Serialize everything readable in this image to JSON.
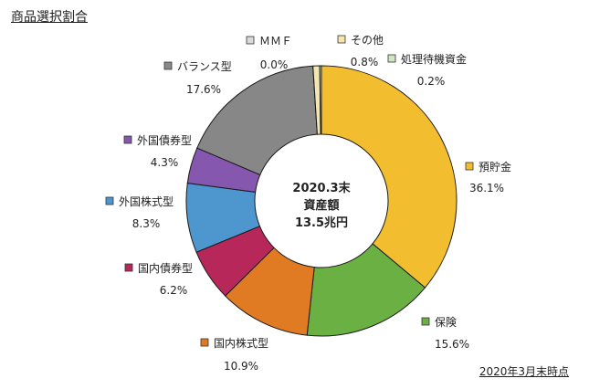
{
  "header": {
    "title": "商品選択割合"
  },
  "footnote": "2020年3月末時点",
  "chart_data": {
    "type": "pie",
    "title": "",
    "center_label": [
      "2020.3末",
      "資産額",
      "13.5兆円"
    ],
    "start": "12 o'clock",
    "direction": "clockwise",
    "legend": "labels beside slices",
    "slices": [
      {
        "name": "預貯金",
        "value": 36.1,
        "label": "36.1%",
        "color": "#F2BD2E"
      },
      {
        "name": "保険",
        "value": 15.6,
        "label": "15.6%",
        "color": "#6BB043"
      },
      {
        "name": "国内株式型",
        "value": 10.9,
        "label": "10.9%",
        "color": "#E07B24"
      },
      {
        "name": "国内債券型",
        "value": 6.2,
        "label": "6.2%",
        "color": "#B8275A"
      },
      {
        "name": "外国株式型",
        "value": 8.3,
        "label": "8.3%",
        "color": "#4E97CE"
      },
      {
        "name": "外国債券型",
        "value": 4.3,
        "label": "4.3%",
        "color": "#8557AE"
      },
      {
        "name": "バランス型",
        "value": 17.6,
        "label": "17.6%",
        "color": "#878787"
      },
      {
        "name": "ＭＭＦ",
        "value": 0.0,
        "label": "0.0%",
        "color": "#D9D9D9"
      },
      {
        "name": "その他",
        "value": 0.8,
        "label": "0.8%",
        "color": "#F3E6AE"
      },
      {
        "name": "処理待機資金",
        "value": 0.2,
        "label": "0.2%",
        "color": "#CDE7BF"
      }
    ]
  }
}
